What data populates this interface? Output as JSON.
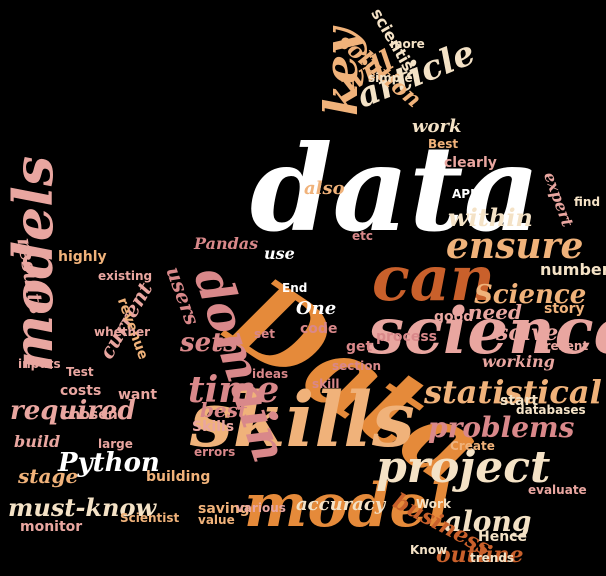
{
  "wordcloud": {
    "colors": {
      "cream": "#f4e2c6",
      "peach": "#f0b27a",
      "orange": "#e58a3a",
      "rust": "#c9602b",
      "rose": "#d9888a",
      "pink": "#e9a6a0",
      "white": "#ffffff"
    },
    "words": [
      {
        "text": "data"
      },
      {
        "text": "Data"
      },
      {
        "text": "science"
      },
      {
        "text": "can"
      },
      {
        "text": "skills"
      },
      {
        "text": "domain"
      },
      {
        "text": "model"
      },
      {
        "text": "project"
      },
      {
        "text": "models"
      },
      {
        "text": "required"
      },
      {
        "text": "Python"
      },
      {
        "text": "must-know"
      },
      {
        "text": "stage"
      },
      {
        "text": "key"
      },
      {
        "text": "article"
      },
      {
        "text": "will"
      },
      {
        "text": "ensure"
      },
      {
        "text": "within"
      },
      {
        "text": "Science"
      },
      {
        "text": "solution"
      },
      {
        "text": "scientist"
      },
      {
        "text": "statistical"
      },
      {
        "text": "problems"
      },
      {
        "text": "along"
      },
      {
        "text": "business"
      },
      {
        "text": "outline"
      },
      {
        "text": "time"
      },
      {
        "text": "sets"
      },
      {
        "text": "users"
      },
      {
        "text": "need"
      },
      {
        "text": "solve"
      },
      {
        "text": "One"
      },
      {
        "text": "current"
      },
      {
        "text": "results"
      },
      {
        "text": "accuracy"
      },
      {
        "text": "best"
      },
      {
        "text": "Pandas"
      },
      {
        "text": "number"
      },
      {
        "text": "also"
      },
      {
        "text": "work"
      },
      {
        "text": "working"
      },
      {
        "text": "use"
      },
      {
        "text": "code"
      },
      {
        "text": "expert"
      },
      {
        "text": "process"
      },
      {
        "text": "story"
      },
      {
        "text": "revenue"
      },
      {
        "text": "build"
      },
      {
        "text": "chosen"
      },
      {
        "text": "costs"
      },
      {
        "text": "want"
      },
      {
        "text": "highly"
      },
      {
        "text": "monitor"
      },
      {
        "text": "saving"
      },
      {
        "text": "building"
      },
      {
        "text": "Skills"
      },
      {
        "text": "Hence"
      },
      {
        "text": "databases"
      },
      {
        "text": "evaluate"
      },
      {
        "text": "present"
      },
      {
        "text": "clearly"
      },
      {
        "text": "start"
      },
      {
        "text": "simple"
      },
      {
        "text": "find"
      },
      {
        "text": "API"
      },
      {
        "text": "good"
      },
      {
        "text": "section"
      },
      {
        "text": "skill"
      },
      {
        "text": "Best"
      },
      {
        "text": "various"
      },
      {
        "text": "get"
      },
      {
        "text": "Test"
      },
      {
        "text": "inputs"
      },
      {
        "text": "Know"
      },
      {
        "text": "Create"
      },
      {
        "text": "large"
      },
      {
        "text": "whether"
      },
      {
        "text": "ideas"
      },
      {
        "text": "errors"
      },
      {
        "text": "etc"
      },
      {
        "text": "set"
      },
      {
        "text": "Work"
      },
      {
        "text": "value"
      },
      {
        "text": "trends"
      },
      {
        "text": "Scientist"
      },
      {
        "text": "existing"
      },
      {
        "text": "more"
      },
      {
        "text": "End"
      }
    ]
  }
}
